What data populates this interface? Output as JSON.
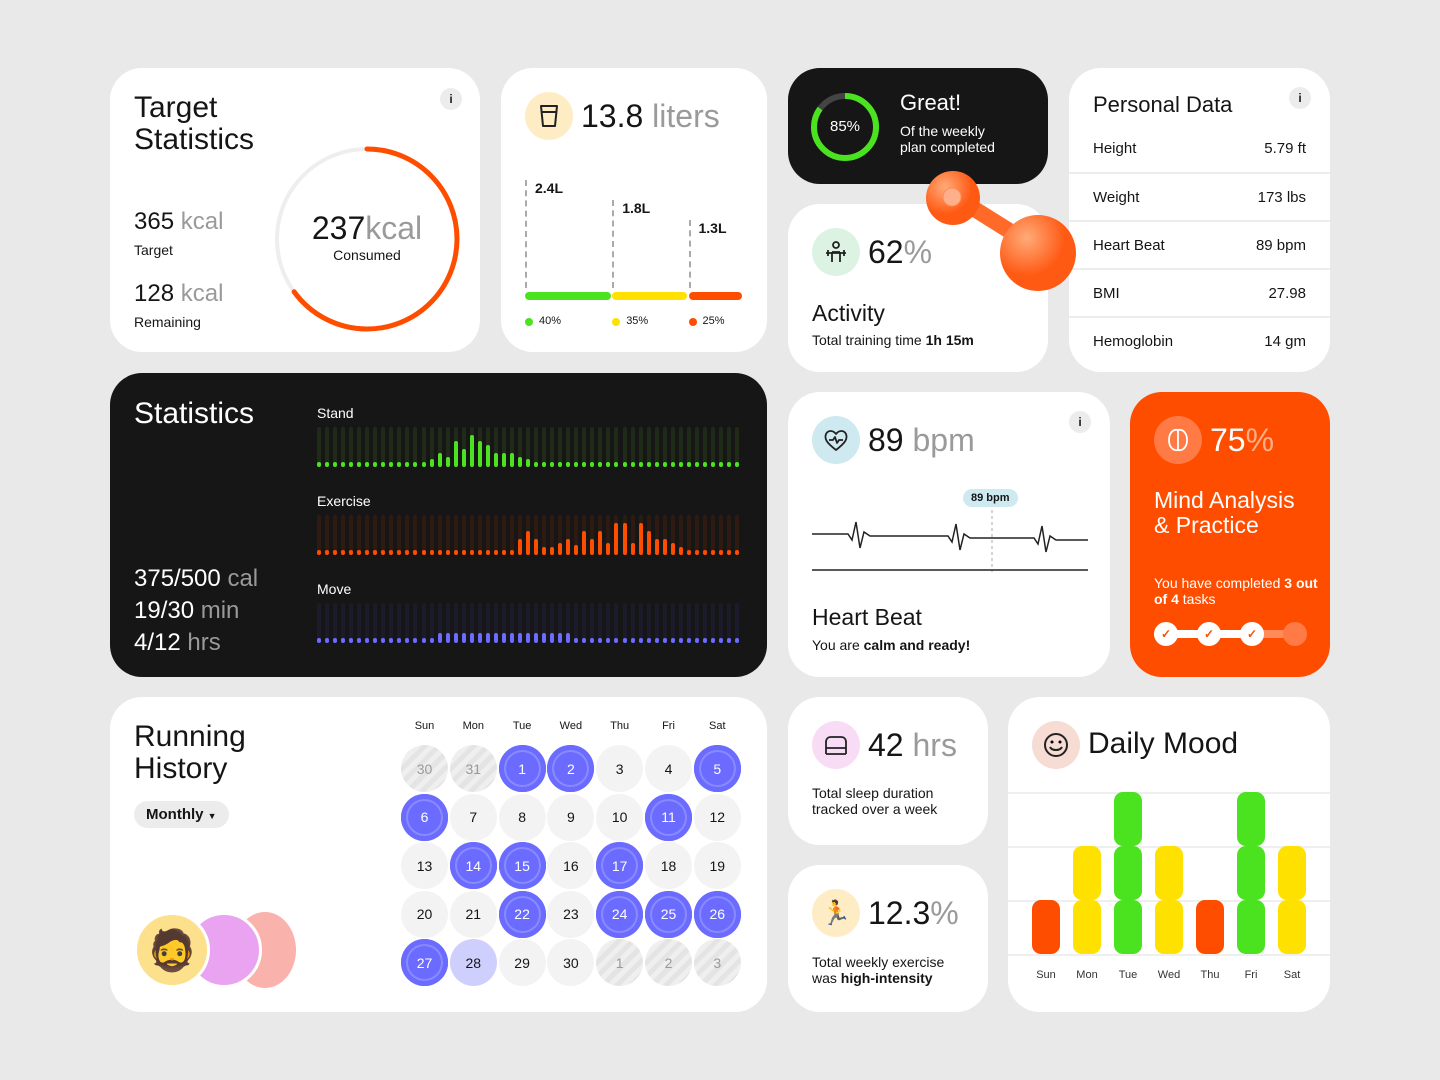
{
  "target": {
    "title": "Target Statistics",
    "target_value": "365",
    "target_unit": "kcal",
    "target_label": "Target",
    "remaining_value": "128",
    "remaining_unit": "kcal",
    "remaining_label": "Remaining",
    "consumed_value": "237",
    "consumed_unit": "kcal",
    "consumed_label": "Consumed",
    "progress": 0.65,
    "info": "i"
  },
  "water": {
    "value": "13.8",
    "unit": "liters",
    "bars": [
      {
        "label": "2.4L",
        "percent": "40%",
        "share": 40,
        "color": "#4be31f"
      },
      {
        "label": "1.8L",
        "percent": "35%",
        "share": 35,
        "color": "#ffe100"
      },
      {
        "label": "1.3L",
        "percent": "25%",
        "share": 25,
        "color": "#ff4d00"
      }
    ]
  },
  "plan": {
    "percent": "85%",
    "progress": 0.85,
    "title": "Great!",
    "subtitle_1": "Of the weekly",
    "subtitle_2": "plan completed"
  },
  "activity": {
    "value": "62",
    "unit": "%",
    "title": "Activity",
    "subtitle": "Total training time",
    "time": "1h 15m"
  },
  "personal": {
    "title": "Personal Data",
    "info": "i",
    "rows": [
      {
        "label": "Height",
        "value": "5.79 ft"
      },
      {
        "label": "Weight",
        "value": "173 lbs"
      },
      {
        "label": "Heart Beat",
        "value": "89 bpm"
      },
      {
        "label": "BMI",
        "value": "27.98"
      },
      {
        "label": "Hemoglobin",
        "value": "14 gm"
      }
    ]
  },
  "statistics": {
    "title": "Statistics",
    "cal": "375/500",
    "cal_unit": "cal",
    "min": "19/30",
    "min_unit": "min",
    "hrs": "4/12",
    "hrs_unit": "hrs",
    "series": [
      {
        "name": "Stand",
        "color": "#4be31f",
        "track": "#1f2a17",
        "levels": [
          0,
          0,
          0,
          0,
          0,
          0,
          0,
          0,
          0,
          0,
          0,
          0,
          0,
          0,
          0.2,
          0.35,
          0.25,
          0.65,
          0.45,
          0.8,
          0.65,
          0.55,
          0.35,
          0.35,
          0.35,
          0.25,
          0.2,
          0,
          0,
          0,
          0,
          0,
          0,
          0,
          0,
          0,
          0,
          0,
          0,
          0,
          0,
          0,
          0,
          0,
          0,
          0,
          0,
          0,
          0,
          0,
          0,
          0,
          0
        ]
      },
      {
        "name": "Exercise",
        "color": "#ff4d00",
        "track": "#2f1a12",
        "levels": [
          0,
          0,
          0,
          0,
          0,
          0,
          0,
          0,
          0,
          0,
          0,
          0,
          0,
          0,
          0,
          0,
          0,
          0,
          0,
          0,
          0,
          0,
          0,
          0,
          0,
          0.4,
          0.6,
          0.4,
          0.2,
          0.2,
          0.3,
          0.4,
          0.25,
          0.6,
          0.4,
          0.6,
          0.3,
          0.8,
          0.8,
          0.3,
          0.8,
          0.6,
          0.4,
          0.4,
          0.3,
          0.2,
          0,
          0,
          0,
          0,
          0,
          0,
          0
        ]
      },
      {
        "name": "Move",
        "color": "#6b6bff",
        "track": "#1b1b2c",
        "levels": [
          0,
          0,
          0,
          0,
          0,
          0,
          0,
          0,
          0,
          0,
          0,
          0,
          0,
          0,
          0,
          0.25,
          0.25,
          0.25,
          0.25,
          0.25,
          0.25,
          0.25,
          0.25,
          0.25,
          0.25,
          0.25,
          0.25,
          0.25,
          0.25,
          0.25,
          0.25,
          0.25,
          0,
          0,
          0,
          0,
          0,
          0,
          0,
          0,
          0,
          0,
          0,
          0,
          0,
          0,
          0,
          0,
          0,
          0,
          0,
          0,
          0
        ]
      }
    ]
  },
  "heart": {
    "value": "89",
    "unit": "bpm",
    "tooltip": "89 bpm",
    "title": "Heart Beat",
    "subtitle": "You are",
    "subtitle_bold": "calm and ready!",
    "info": "i"
  },
  "mind": {
    "value": "75",
    "unit": "%",
    "title_1": "Mind Analysis",
    "title_2": "& Practice",
    "text": "You have completed",
    "bold_1": "3",
    "bold_2": "out of 4",
    "text_2": "tasks",
    "completed": 3,
    "total": 4
  },
  "running": {
    "title_1": "Running",
    "title_2": "History",
    "filter": "Monthly",
    "weekdays": [
      "Sun",
      "Mon",
      "Tue",
      "Wed",
      "Thu",
      "Fri",
      "Sat"
    ],
    "days": [
      [
        "30",
        "o"
      ],
      [
        "31",
        "o"
      ],
      [
        "1",
        "a"
      ],
      [
        "2",
        "a"
      ],
      [
        "3",
        "n"
      ],
      [
        "4",
        "n"
      ],
      [
        "5",
        "a"
      ],
      [
        "6",
        "a"
      ],
      [
        "7",
        "n"
      ],
      [
        "8",
        "n"
      ],
      [
        "9",
        "n"
      ],
      [
        "10",
        "n"
      ],
      [
        "11",
        "a"
      ],
      [
        "12",
        "n"
      ],
      [
        "13",
        "n"
      ],
      [
        "14",
        "a"
      ],
      [
        "15",
        "a"
      ],
      [
        "16",
        "n"
      ],
      [
        "17",
        "a"
      ],
      [
        "18",
        "n"
      ],
      [
        "19",
        "n"
      ],
      [
        "20",
        "n"
      ],
      [
        "21",
        "n"
      ],
      [
        "22",
        "a"
      ],
      [
        "23",
        "n"
      ],
      [
        "24",
        "a"
      ],
      [
        "25",
        "a"
      ],
      [
        "26",
        "a"
      ],
      [
        "27",
        "a"
      ],
      [
        "28",
        "t"
      ],
      [
        "29",
        "n"
      ],
      [
        "30",
        "n"
      ],
      [
        "1",
        "o"
      ],
      [
        "2",
        "o"
      ],
      [
        "3",
        "o"
      ]
    ]
  },
  "sleep": {
    "value": "42",
    "unit": "hrs",
    "text_1": "Total sleep duration",
    "text_2": "tracked over a week"
  },
  "exercise": {
    "value": "12.3",
    "unit": "%",
    "text_1": "Total weekly exercise",
    "text_2": "was",
    "text_bold": "high-intensity"
  },
  "mood": {
    "title": "Daily Mood",
    "days": [
      "Sun",
      "Mon",
      "Tue",
      "Wed",
      "Thu",
      "Fri",
      "Sat"
    ],
    "levels": [
      1,
      2,
      3,
      2,
      1,
      3,
      2
    ],
    "colors": {
      "1": "#ff4d00",
      "2": "#ffe100",
      "3": "#4be31f"
    }
  },
  "colors": {
    "accent": "#ff4d00",
    "green": "#4be31f",
    "yellow": "#ffe100",
    "purple": "#6b6bff",
    "dark": "#161616"
  }
}
